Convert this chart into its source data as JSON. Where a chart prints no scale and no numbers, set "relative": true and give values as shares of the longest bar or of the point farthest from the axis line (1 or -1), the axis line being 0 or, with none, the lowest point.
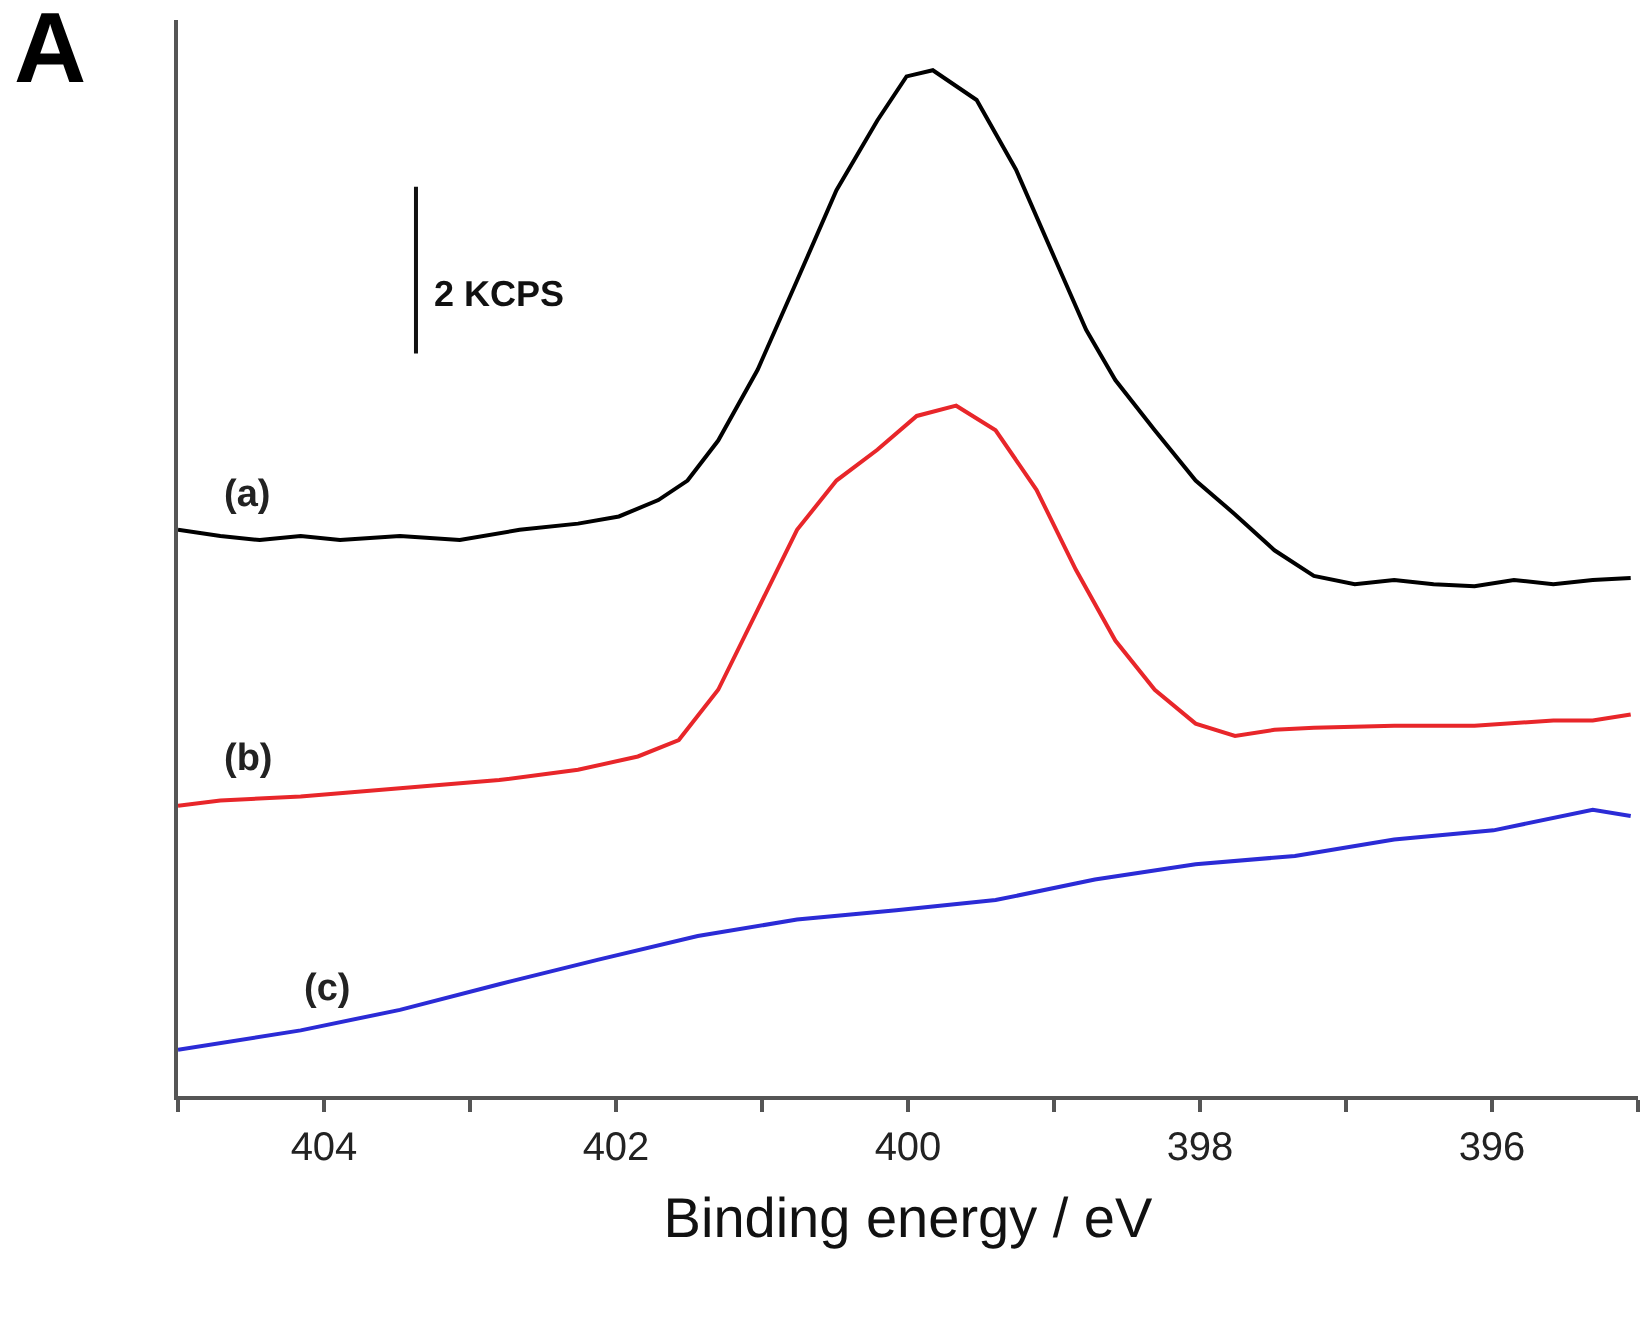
{
  "chart_data": {
    "type": "line",
    "relative": true,
    "xlabel": "Binding energy / eV",
    "xlim": [
      405,
      395
    ],
    "xticks": [
      {
        "value": 405,
        "label": null
      },
      404,
      {
        "value": 403,
        "label": null
      },
      402,
      {
        "value": 401,
        "label": null
      },
      400,
      {
        "value": 399,
        "label": null
      },
      398,
      {
        "value": 397,
        "label": null
      },
      396,
      {
        "value": 395,
        "label": null
      }
    ],
    "annotations": [
      "A",
      "2 KCPS"
    ],
    "legend": false,
    "marker": "none",
    "line_style": "solid",
    "series": [
      {
        "name": "(a)",
        "color": "#000000",
        "x": [
          405.0,
          404.71,
          404.44,
          404.16,
          403.89,
          403.48,
          403.07,
          402.66,
          402.26,
          401.98,
          401.71,
          401.51,
          401.3,
          401.03,
          400.76,
          400.49,
          400.21,
          400.01,
          399.83,
          399.53,
          399.26,
          398.99,
          398.78,
          398.58,
          398.31,
          398.03,
          397.76,
          397.49,
          397.22,
          396.94,
          396.67,
          396.4,
          396.12,
          395.85,
          395.58,
          395.31,
          395.05
        ],
        "values": [
          0.552,
          0.546,
          0.542,
          0.546,
          0.542,
          0.546,
          0.542,
          0.552,
          0.558,
          0.565,
          0.581,
          0.6,
          0.639,
          0.708,
          0.795,
          0.883,
          0.951,
          0.994,
          1.0,
          0.971,
          0.903,
          0.815,
          0.747,
          0.698,
          0.649,
          0.6,
          0.567,
          0.532,
          0.507,
          0.499,
          0.503,
          0.499,
          0.497,
          0.503,
          0.499,
          0.503,
          0.505
        ]
      },
      {
        "name": "(b)",
        "color": "#e8262a",
        "x": [
          405.0,
          404.71,
          404.16,
          403.48,
          402.8,
          402.26,
          401.85,
          401.57,
          401.3,
          401.03,
          400.76,
          400.49,
          400.21,
          399.94,
          399.67,
          399.4,
          399.12,
          398.85,
          398.58,
          398.31,
          398.03,
          397.76,
          397.49,
          397.22,
          396.67,
          396.12,
          395.58,
          395.31,
          395.05
        ],
        "values": [
          0.283,
          0.288,
          0.292,
          0.3,
          0.308,
          0.318,
          0.331,
          0.347,
          0.396,
          0.474,
          0.552,
          0.6,
          0.63,
          0.663,
          0.673,
          0.649,
          0.591,
          0.513,
          0.444,
          0.396,
          0.363,
          0.351,
          0.357,
          0.359,
          0.361,
          0.361,
          0.366,
          0.366,
          0.372
        ]
      },
      {
        "name": "(c)",
        "color": "#2b2bd6",
        "x": [
          405.0,
          404.16,
          403.48,
          402.8,
          402.12,
          401.44,
          400.76,
          400.08,
          399.4,
          398.72,
          398.03,
          397.35,
          396.67,
          395.99,
          395.31,
          395.05
        ],
        "values": [
          0.045,
          0.064,
          0.084,
          0.109,
          0.133,
          0.156,
          0.172,
          0.181,
          0.191,
          0.211,
          0.226,
          0.234,
          0.25,
          0.259,
          0.279,
          0.273
        ]
      }
    ]
  }
}
